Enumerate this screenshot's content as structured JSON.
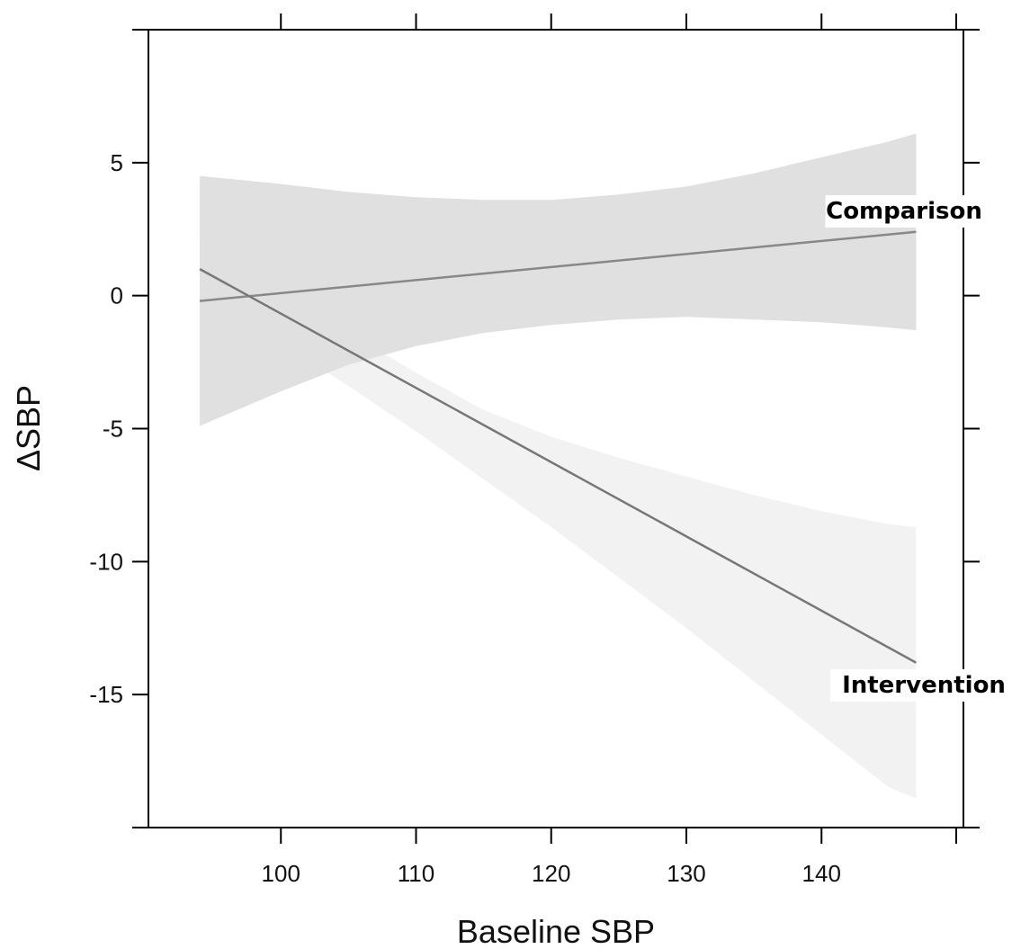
{
  "chart_data": {
    "type": "line",
    "xlabel": "Baseline SBP",
    "ylabel": "ΔSBP",
    "xlim": [
      90.2,
      150.5
    ],
    "ylim": [
      -20,
      10
    ],
    "xticks": [
      100,
      110,
      120,
      130,
      140
    ],
    "yticks": [
      5,
      0,
      -5,
      -10,
      -15
    ],
    "x_tick_labels": [
      "100",
      "110",
      "120",
      "130",
      "140"
    ],
    "y_tick_labels": [
      "5",
      "0",
      "-5",
      "-10",
      "-15"
    ],
    "grid": false,
    "legend": "none (series labeled directly at right end of lines)",
    "series": [
      {
        "name": "Comparison",
        "color": "#888888",
        "band_color": "#e0e0e0",
        "x": [
          94,
          147
        ],
        "y": [
          -0.2,
          2.4
        ],
        "ci_x": [
          94,
          100,
          105,
          110,
          115,
          120,
          125,
          130,
          135,
          140,
          145,
          147
        ],
        "ci_lower": [
          -4.9,
          -3.6,
          -2.6,
          -1.9,
          -1.4,
          -1.1,
          -0.9,
          -0.8,
          -0.9,
          -1.0,
          -1.2,
          -1.3
        ],
        "ci_upper": [
          4.5,
          4.2,
          3.9,
          3.7,
          3.6,
          3.6,
          3.8,
          4.1,
          4.6,
          5.2,
          5.8,
          6.1
        ]
      },
      {
        "name": "Intervention",
        "color": "#777777",
        "band_color": "#f2f2f2",
        "x": [
          94,
          147
        ],
        "y": [
          1.0,
          -13.8
        ],
        "ci_x": [
          94,
          100,
          105,
          110,
          115,
          120,
          125,
          130,
          135,
          140,
          145,
          147
        ],
        "ci_lower": [
          -0.2,
          -1.8,
          -3.4,
          -5.1,
          -6.9,
          -8.7,
          -10.6,
          -12.5,
          -14.5,
          -16.5,
          -18.5,
          -18.9
        ],
        "ci_upper": [
          2.2,
          0.2,
          -1.4,
          -2.9,
          -4.3,
          -5.3,
          -6.1,
          -6.8,
          -7.5,
          -8.1,
          -8.6,
          -8.7
        ]
      }
    ]
  }
}
